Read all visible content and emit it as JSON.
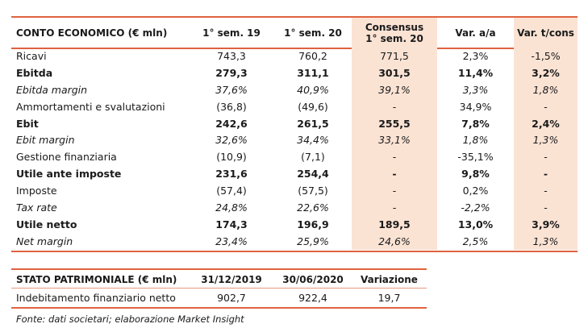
{
  "conto_economico": {
    "headers": [
      "CONTO ECONOMICO (€ mln)",
      "1° sem. 19",
      "1° sem. 20",
      "Consensus\n1° sem. 20",
      "Var. a/a",
      "Var. t/cons"
    ],
    "rows": [
      {
        "label": "Ricavi",
        "style": "normal",
        "values": [
          "743,3",
          "760,2",
          "771,5",
          "2,3%",
          "-1,5%"
        ]
      },
      {
        "label": "Ebitda",
        "style": "bold",
        "values": [
          "279,3",
          "311,1",
          "301,5",
          "11,4%",
          "3,2%"
        ]
      },
      {
        "label": "Ebitda margin",
        "style": "italic",
        "values": [
          "37,6%",
          "40,9%",
          "39,1%",
          "3,3%",
          "1,8%"
        ]
      },
      {
        "label": "Ammortamenti e svalutazioni",
        "style": "normal",
        "values": [
          "(36,8)",
          "(49,6)",
          "-",
          "34,9%",
          "-"
        ]
      },
      {
        "label": "Ebit",
        "style": "bold",
        "values": [
          "242,6",
          "261,5",
          "255,5",
          "7,8%",
          "2,4%"
        ]
      },
      {
        "label": "Ebit margin",
        "style": "italic",
        "values": [
          "32,6%",
          "34,4%",
          "33,1%",
          "1,8%",
          "1,3%"
        ]
      },
      {
        "label": "Gestione finanziaria",
        "style": "normal",
        "values": [
          "(10,9)",
          "(7,1)",
          "-",
          "-35,1%",
          "-"
        ]
      },
      {
        "label": "Utile ante imposte",
        "style": "bold",
        "values": [
          "231,6",
          "254,4",
          "-",
          "9,8%",
          "-"
        ]
      },
      {
        "label": "Imposte",
        "style": "normal",
        "values": [
          "(57,4)",
          "(57,5)",
          "-",
          "0,2%",
          "-"
        ]
      },
      {
        "label": "Tax rate",
        "style": "italic",
        "values": [
          "24,8%",
          "22,6%",
          "-",
          "-2,2%",
          "-"
        ]
      },
      {
        "label": "Utile netto",
        "style": "bold",
        "values": [
          "174,3",
          "196,9",
          "189,5",
          "13,0%",
          "3,9%"
        ]
      },
      {
        "label": "Net margin",
        "style": "italic",
        "values": [
          "23,4%",
          "25,9%",
          "24,6%",
          "2,5%",
          "1,3%"
        ]
      }
    ]
  },
  "stato_patrimoniale": {
    "headers": [
      "STATO PATRIMONIALE (€ mln)",
      "31/12/2019",
      "30/06/2020",
      "Variazione"
    ],
    "rows": [
      {
        "label": "Indebitamento finanziario netto",
        "style": "normal",
        "values": [
          "902,7",
          "922,4",
          "19,7"
        ]
      }
    ]
  },
  "source_note": "Fonte: dati societari; elaborazione Market Insight",
  "colors": {
    "rule": "#e0623d",
    "shade": "#fbe3d4"
  }
}
